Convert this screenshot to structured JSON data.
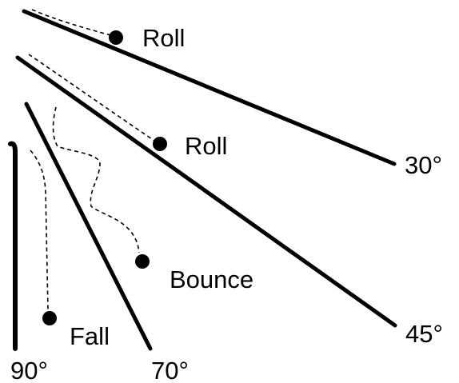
{
  "labels": {
    "roll_top": "Roll",
    "roll_middle": "Roll",
    "bounce": "Bounce",
    "fall": "Fall"
  },
  "angles": {
    "a30": "30°",
    "a45": "45°",
    "a70": "70°",
    "a90": "90°"
  },
  "colors": {
    "ink": "#000000",
    "background": "#ffffff"
  }
}
